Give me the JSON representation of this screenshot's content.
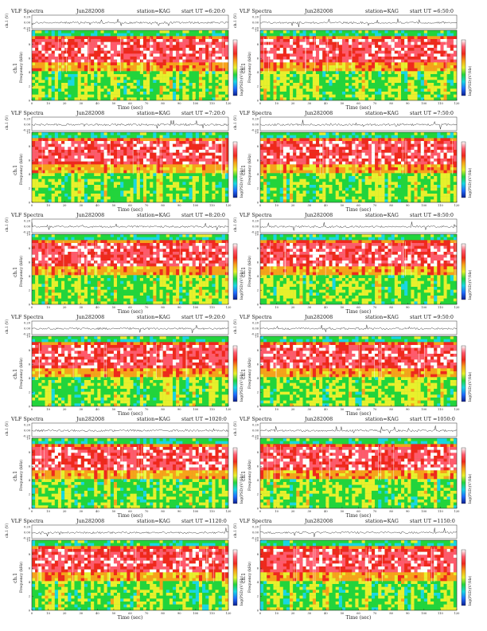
{
  "page": {
    "title": "VLF Spectra grid, Jun 28 2008, station KAG"
  },
  "chart_data": [
    {
      "type": "heatmap",
      "title": "VLF Spectra",
      "date": "Jun282008",
      "station": "station=KAG",
      "start_ut": "start  UT  =6:20:0",
      "trace_label": "ch.1 (V)",
      "trace_ticks": [
        "0.20",
        "0.00",
        "-0.20"
      ],
      "channel": "ch.1",
      "ylabel": "Frequency  (kHz)",
      "xlabel": "Time  (sec)",
      "colorbar_label": "log(PSD)(V²/Hz)",
      "xlim": [
        0,
        120
      ],
      "ylim": [
        0,
        10
      ],
      "xticks": [
        "0",
        "10",
        "20",
        "30",
        "40",
        "50",
        "60",
        "70",
        "80",
        "90",
        "100",
        "110",
        "120"
      ],
      "yticks": [
        "0",
        "2",
        "4",
        "6",
        "8",
        "10"
      ]
    },
    {
      "type": "heatmap",
      "title": "VLF Spectra",
      "date": "Jun282008",
      "station": "station=KAG",
      "start_ut": "start  UT  =6:50:0",
      "trace_label": "ch.1 (V)",
      "trace_ticks": [
        "0.20",
        "0.00",
        "-0.20"
      ],
      "channel": "ch.1",
      "ylabel": "Frequency  (kHz)",
      "xlabel": "Time  (sec)",
      "colorbar_label": "log(PSD)(V²/Hz)",
      "xlim": [
        0,
        120
      ],
      "ylim": [
        0,
        10
      ],
      "xticks": [
        "0",
        "10",
        "20",
        "30",
        "40",
        "50",
        "60",
        "70",
        "80",
        "90",
        "100",
        "110",
        "120"
      ],
      "yticks": [
        "0",
        "2",
        "4",
        "6",
        "8",
        "10"
      ]
    },
    {
      "type": "heatmap",
      "title": "VLF Spectra",
      "date": "Jun282008",
      "station": "station=KAG",
      "start_ut": "start  UT  =7:20:0",
      "trace_label": "ch.1 (V)",
      "trace_ticks": [
        "0.20",
        "0.00",
        "-0.20"
      ],
      "channel": "ch.1",
      "ylabel": "Frequency  (kHz)",
      "xlabel": "Time  (sec)",
      "colorbar_label": "log(PSD)(V²/Hz)",
      "xlim": [
        0,
        120
      ],
      "ylim": [
        0,
        10
      ],
      "xticks": [
        "0",
        "10",
        "20",
        "30",
        "40",
        "50",
        "60",
        "70",
        "80",
        "90",
        "100",
        "110",
        "120"
      ],
      "yticks": [
        "0",
        "2",
        "4",
        "6",
        "8",
        "10"
      ]
    },
    {
      "type": "heatmap",
      "title": "VLF Spectra",
      "date": "Jun282008",
      "station": "station=KAG",
      "start_ut": "start  UT  =7:50:0",
      "trace_label": "ch.1 (V)",
      "trace_ticks": [
        "0.20",
        "0.00",
        "-0.20"
      ],
      "channel": "ch.1",
      "ylabel": "Frequency  (kHz)",
      "xlabel": "Time  (sec)",
      "colorbar_label": "log(PSD)(V²/Hz)",
      "xlim": [
        0,
        120
      ],
      "ylim": [
        0,
        10
      ],
      "xticks": [
        "0",
        "10",
        "20",
        "30",
        "40",
        "50",
        "60",
        "70",
        "80",
        "90",
        "100",
        "110",
        "120"
      ],
      "yticks": [
        "0",
        "2",
        "4",
        "6",
        "8",
        "10"
      ]
    },
    {
      "type": "heatmap",
      "title": "VLF Spectra",
      "date": "Jun282008",
      "station": "station=KAG",
      "start_ut": "start  UT  =8:20:0",
      "trace_label": "ch.1 (V)",
      "trace_ticks": [
        "0.20",
        "0.00",
        "-0.20"
      ],
      "channel": "ch.1",
      "ylabel": "Frequency  (kHz)",
      "xlabel": "Time  (sec)",
      "colorbar_label": "log(PSD)(V²/Hz)",
      "xlim": [
        0,
        120
      ],
      "ylim": [
        0,
        10
      ],
      "xticks": [
        "0",
        "10",
        "20",
        "30",
        "40",
        "50",
        "60",
        "70",
        "80",
        "90",
        "100",
        "110",
        "120"
      ],
      "yticks": [
        "0",
        "2",
        "4",
        "6",
        "8",
        "10"
      ]
    },
    {
      "type": "heatmap",
      "title": "VLF Spectra",
      "date": "Jun282008",
      "station": "station=KAG",
      "start_ut": "start  UT  =8:50:0",
      "trace_label": "ch.1 (V)",
      "trace_ticks": [
        "0.20",
        "0.00",
        "-0.20"
      ],
      "channel": "ch.1",
      "ylabel": "Frequency  (kHz)",
      "xlabel": "Time  (sec)",
      "colorbar_label": "log(PSD)(V²/Hz)",
      "xlim": [
        0,
        120
      ],
      "ylim": [
        0,
        10
      ],
      "xticks": [
        "0",
        "10",
        "20",
        "30",
        "40",
        "50",
        "60",
        "70",
        "80",
        "90",
        "100",
        "110",
        "120"
      ],
      "yticks": [
        "0",
        "2",
        "4",
        "6",
        "8",
        "10"
      ]
    },
    {
      "type": "heatmap",
      "title": "VLF Spectra",
      "date": "Jun282008",
      "station": "station=KAG",
      "start_ut": "start  UT  =9:20:0",
      "trace_label": "ch.1 (V)",
      "trace_ticks": [
        "0.20",
        "0.00",
        "-0.20"
      ],
      "channel": "ch.1",
      "ylabel": "Frequency  (kHz)",
      "xlabel": "Time  (sec)",
      "colorbar_label": "log(PSD)(V²/Hz)",
      "xlim": [
        0,
        120
      ],
      "ylim": [
        0,
        10
      ],
      "xticks": [
        "0",
        "10",
        "20",
        "30",
        "40",
        "50",
        "60",
        "70",
        "80",
        "90",
        "100",
        "110",
        "120"
      ],
      "yticks": [
        "0",
        "2",
        "4",
        "6",
        "8",
        "10"
      ]
    },
    {
      "type": "heatmap",
      "title": "VLF Spectra",
      "date": "Jun282008",
      "station": "station=KAG",
      "start_ut": "start  UT  =9:50:0",
      "trace_label": "ch.1 (V)",
      "trace_ticks": [
        "0.20",
        "0.00",
        "-0.20"
      ],
      "channel": "ch.1",
      "ylabel": "Frequency  (kHz)",
      "xlabel": "Time  (sec)",
      "colorbar_label": "log(PSD)(V²/Hz)",
      "xlim": [
        0,
        120
      ],
      "ylim": [
        0,
        10
      ],
      "xticks": [
        "0",
        "10",
        "20",
        "30",
        "40",
        "50",
        "60",
        "70",
        "80",
        "90",
        "100",
        "110",
        "120"
      ],
      "yticks": [
        "0",
        "2",
        "4",
        "6",
        "8",
        "10"
      ]
    },
    {
      "type": "heatmap",
      "title": "VLF Spectra",
      "date": "Jun282008",
      "station": "station=KAG",
      "start_ut": "start  UT  =1020:0",
      "trace_label": "ch.1 (V)",
      "trace_ticks": [
        "0.20",
        "0.00",
        "-0.20"
      ],
      "channel": "ch.1",
      "ylabel": "Frequency  (kHz)",
      "xlabel": "Time  (sec)",
      "colorbar_label": "log(PSD)(V²/Hz)",
      "xlim": [
        0,
        120
      ],
      "ylim": [
        0,
        10
      ],
      "xticks": [
        "0",
        "10",
        "20",
        "30",
        "40",
        "50",
        "60",
        "70",
        "80",
        "90",
        "100",
        "110",
        "120"
      ],
      "yticks": [
        "0",
        "2",
        "4",
        "6",
        "8",
        "10"
      ]
    },
    {
      "type": "heatmap",
      "title": "VLF Spectra",
      "date": "Jun282008",
      "station": "station=KAG",
      "start_ut": "start  UT  =1050:0",
      "trace_label": "ch.1 (V)",
      "trace_ticks": [
        "0.20",
        "0.00",
        "-0.20"
      ],
      "channel": "ch.1",
      "ylabel": "Frequency  (kHz)",
      "xlabel": "Time  (sec)",
      "colorbar_label": "log(PSD)(V²/Hz)",
      "xlim": [
        0,
        120
      ],
      "ylim": [
        0,
        10
      ],
      "xticks": [
        "0",
        "10",
        "20",
        "30",
        "40",
        "50",
        "60",
        "70",
        "80",
        "90",
        "100",
        "110",
        "120"
      ],
      "yticks": [
        "0",
        "2",
        "4",
        "6",
        "8",
        "10"
      ]
    },
    {
      "type": "heatmap",
      "title": "VLF Spectra",
      "date": "Jun282008",
      "station": "station=KAG",
      "start_ut": "start  UT  =1120:0",
      "trace_label": "ch.1 (V)",
      "trace_ticks": [
        "0.20",
        "0.00",
        "-0.20"
      ],
      "channel": "ch.1",
      "ylabel": "Frequency  (kHz)",
      "xlabel": "Time  (sec)",
      "colorbar_label": "log(PSD)(V²/Hz)",
      "xlim": [
        0,
        120
      ],
      "ylim": [
        0,
        10
      ],
      "xticks": [
        "0",
        "10",
        "20",
        "30",
        "40",
        "50",
        "60",
        "70",
        "80",
        "90",
        "100",
        "110",
        "120"
      ],
      "yticks": [
        "0",
        "2",
        "4",
        "6",
        "8",
        "10"
      ]
    },
    {
      "type": "heatmap",
      "title": "VLF Spectra",
      "date": "Jun282008",
      "station": "station=KAG",
      "start_ut": "start  UT  =1150:0",
      "trace_label": "ch.1 (V)",
      "trace_ticks": [
        "0.20",
        "0.00",
        "-0.20"
      ],
      "channel": "ch.1",
      "ylabel": "Frequency  (kHz)",
      "xlabel": "Time  (sec)",
      "colorbar_label": "log(PSD)(V²/Hz)",
      "xlim": [
        0,
        120
      ],
      "ylim": [
        0,
        10
      ],
      "xticks": [
        "0",
        "10",
        "20",
        "30",
        "40",
        "50",
        "60",
        "70",
        "80",
        "90",
        "100",
        "110",
        "120"
      ],
      "yticks": [
        "0",
        "2",
        "4",
        "6",
        "8",
        "10"
      ]
    }
  ],
  "colormap": [
    "#0b1f8f",
    "#1f6cff",
    "#19d7e3",
    "#22d43c",
    "#e8f02c",
    "#f7a21a",
    "#f0281c",
    "#ff5a6c",
    "#ffffff"
  ]
}
